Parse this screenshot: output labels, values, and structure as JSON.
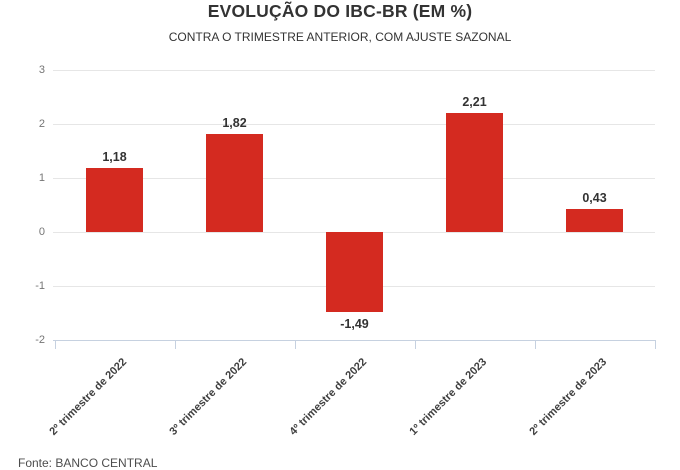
{
  "header": {
    "title": "EVOLUÇÃO DO IBC-BR (EM %)",
    "subtitle": "CONTRA O TRIMESTRE ANTERIOR, COM AJUSTE SAZONAL"
  },
  "footer": {
    "source": "Fonte: BANCO CENTRAL"
  },
  "chart_data": {
    "type": "bar",
    "title": "EVOLUÇÃO DO IBC-BR (EM %)",
    "subtitle": "CONTRA O TRIMESTRE ANTERIOR, COM AJUSTE SAZONAL",
    "categories": [
      "2º trimestre de 2022",
      "3º trimestre de 2022",
      "4º trimestre de 2022",
      "1º trimestre de 2023",
      "2º trimestre de 2023"
    ],
    "values": [
      1.18,
      1.82,
      -1.49,
      2.21,
      0.43
    ],
    "value_labels": [
      "1,18",
      "1,82",
      "-1,49",
      "2,21",
      "0,43"
    ],
    "xlabel": "",
    "ylabel": "",
    "y_ticks": [
      3,
      2,
      1,
      0,
      -1,
      -2
    ],
    "ylim": [
      -2,
      3
    ],
    "grid": true,
    "legend": "none",
    "bar_color": "#d42a20",
    "gridline_color": "#e6e6e6",
    "axis_line_color": "#c6d1e0",
    "source": "Fonte: BANCO CENTRAL"
  }
}
